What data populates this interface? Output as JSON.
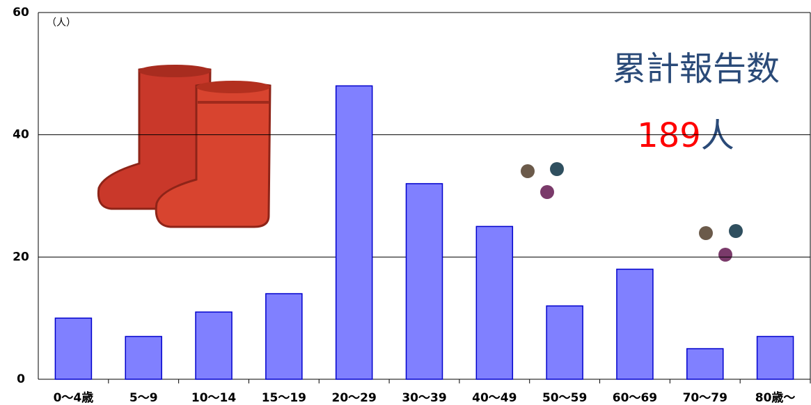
{
  "chart_data": {
    "type": "bar",
    "y_unit_label": "（人）",
    "categories": [
      "0〜4歳",
      "5〜9",
      "10〜14",
      "15〜19",
      "20〜29",
      "30〜39",
      "40〜49",
      "50〜59",
      "60〜69",
      "70〜79",
      "80歳〜"
    ],
    "values": [
      10,
      7,
      11,
      14,
      48,
      32,
      25,
      12,
      18,
      5,
      7
    ],
    "color": "#8080ff",
    "edge_color": "#0000cc",
    "ylim": [
      0,
      60
    ],
    "yticks": [
      0,
      20,
      40,
      60
    ],
    "grid": true,
    "annotation": "累計報告数",
    "total": 189,
    "total_unit": "人"
  }
}
